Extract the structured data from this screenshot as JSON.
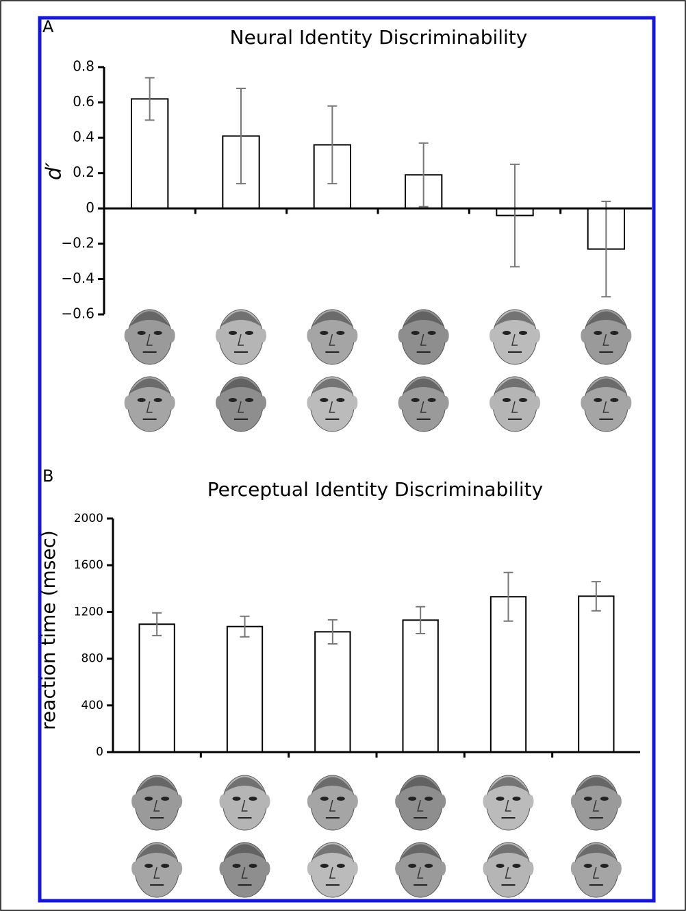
{
  "chart_data": [
    {
      "type": "bar",
      "panel_label": "A",
      "title": "Neural Identity Discriminability",
      "y_label": "d′",
      "values": [
        0.62,
        0.41,
        0.36,
        0.19,
        -0.04,
        -0.23
      ],
      "errors": [
        0.12,
        0.27,
        0.22,
        0.18,
        0.29,
        0.27
      ],
      "color": "#ffffff",
      "ylim": [
        -0.6,
        0.8
      ],
      "yticks": [
        0.8,
        0.6,
        0.4,
        0.2,
        0,
        {
          "value": -0.2,
          "label": "−0.2"
        },
        {
          "value": -0.4,
          "label": "−0.4"
        },
        {
          "value": -0.6,
          "label": "−0.6"
        }
      ]
    },
    {
      "type": "bar",
      "panel_label": "B",
      "title": "Perceptual Identity Discriminability",
      "y_label": "reaction time (msec)",
      "values": [
        1095,
        1075,
        1030,
        1130,
        1330,
        1335
      ],
      "errors": [
        97,
        88,
        103,
        115,
        208,
        125
      ],
      "color": "#ffffff",
      "ylim": [
        0,
        2000
      ],
      "yticks": [
        0,
        400,
        800,
        1200,
        1600,
        2000
      ]
    }
  ]
}
